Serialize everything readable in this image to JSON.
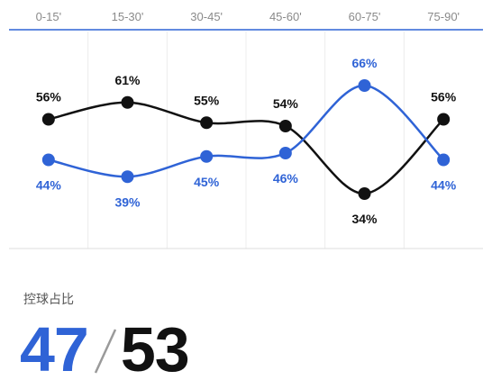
{
  "chart_data": {
    "type": "line",
    "categories": [
      "0-15'",
      "15-30'",
      "30-45'",
      "45-60'",
      "60-75'",
      "75-90'"
    ],
    "ylim": [
      0,
      100
    ],
    "grid": true,
    "series": [
      {
        "values": [
          56,
          61,
          55,
          54,
          34,
          56
        ],
        "color": "#111111",
        "labels": [
          "56%",
          "61%",
          "55%",
          "54%",
          "34%",
          "56%"
        ]
      },
      {
        "values": [
          44,
          39,
          45,
          46,
          66,
          44
        ],
        "color": "#2f63d6",
        "labels": [
          "44%",
          "39%",
          "45%",
          "46%",
          "66%",
          "44%"
        ]
      }
    ]
  },
  "stat": {
    "label": "控球占比",
    "left_value": "47",
    "separator": "/",
    "right_value": "53",
    "left_color": "#2f63d6",
    "right_color": "#111111"
  }
}
